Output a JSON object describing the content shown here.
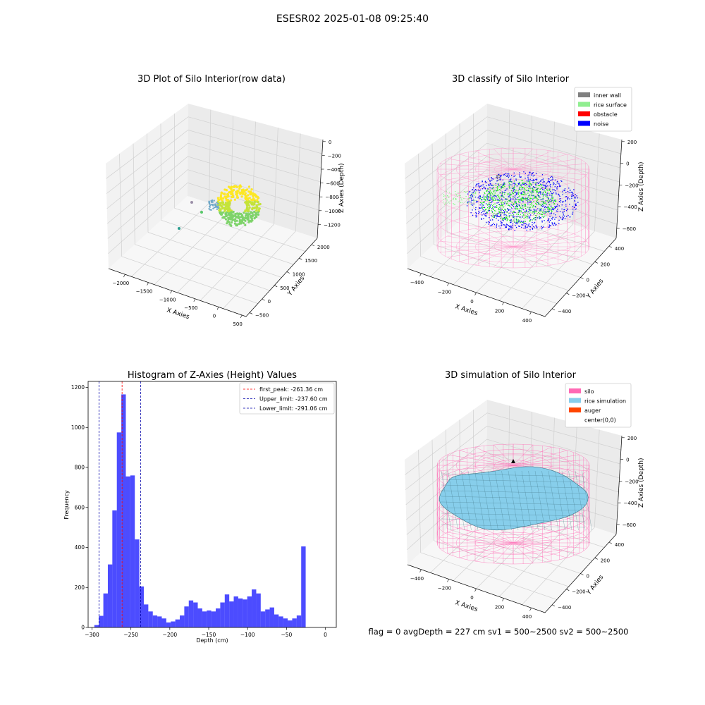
{
  "suptitle": "ESESR02 2025-01-08 09:25:40",
  "footer": "flag = 0     avgDepth = 227 cm  sv1 = 500~2500  sv2 = 500~2500",
  "chart_data": [
    {
      "type": "scatter3d",
      "title": "3D Plot of Silo Interior(row data)",
      "xlabel": "X Axies",
      "ylabel": "Y Axies",
      "zlabel": "Z Axies (Depth)",
      "x_ticks": [
        "−2000",
        "−1500",
        "−1000",
        "−500",
        "0",
        "500"
      ],
      "y_ticks": [
        "−500",
        "0",
        "500",
        "1000",
        "1500",
        "2000"
      ],
      "z_ticks": [
        "0",
        "−200",
        "−400",
        "−600",
        "−800",
        "−1000",
        "−1200"
      ],
      "xlim": [
        -2300,
        500
      ],
      "ylim": [
        -500,
        2300
      ],
      "zlim": [
        -1300,
        0
      ],
      "colormap": [
        "#2b9e8f",
        "#7ed36a",
        "#fde725"
      ],
      "grid": true
    },
    {
      "type": "scatter3d",
      "title": "3D classify of Silo Interior",
      "xlabel": "X Axies",
      "ylabel": "Y Axies",
      "zlabel": "Z Axies (Depth)",
      "x_ticks": [
        "−400",
        "−200",
        "0",
        "200",
        "400"
      ],
      "y_ticks": [
        "−400",
        "−200",
        "0",
        "200",
        "400"
      ],
      "z_ticks": [
        "200",
        "0",
        "−200",
        "−400",
        "−600"
      ],
      "legend_position": "top-right",
      "legend": [
        {
          "label": "inner wall",
          "color": "#808080"
        },
        {
          "label": "rice surface",
          "color": "#90ee90"
        },
        {
          "label": "obstacle",
          "color": "#ff0000"
        },
        {
          "label": "noise",
          "color": "#0000ff"
        }
      ],
      "grid": true
    },
    {
      "type": "bar",
      "title": "Histogram of Z-Axies (Height) Values",
      "xlabel": "Depth (cm)",
      "ylabel": "Frequency",
      "xlim": [
        -305,
        0
      ],
      "ylim": [
        0,
        1230
      ],
      "x_ticks": [
        -300,
        -250,
        -200,
        -150,
        -100,
        -50,
        0
      ],
      "y_ticks": [
        0,
        200,
        400,
        600,
        800,
        1000,
        1200
      ],
      "bin_start": -297,
      "bin_width": 5.78,
      "values": [
        12,
        58,
        170,
        315,
        585,
        975,
        1165,
        755,
        760,
        440,
        205,
        115,
        80,
        60,
        55,
        45,
        25,
        30,
        40,
        60,
        105,
        135,
        125,
        95,
        80,
        85,
        80,
        95,
        125,
        165,
        130,
        155,
        145,
        140,
        155,
        190,
        170,
        80,
        90,
        100,
        65,
        55,
        45,
        35,
        45,
        60,
        405
      ],
      "color": "#0000ff",
      "vlines": [
        {
          "label": "first_peak: -261.36 cm",
          "x": -261.36,
          "color": "#ff0000"
        },
        {
          "label": "Upper_limit: -237.60 cm",
          "x": -237.6,
          "color": "#0000aa"
        },
        {
          "label": "Lower_limit: -291.06 cm",
          "x": -291.06,
          "color": "#0000aa"
        }
      ],
      "legend_position": "top-right",
      "grid": false
    },
    {
      "type": "surface3d",
      "title": "3D simulation of Silo Interior",
      "xlabel": "X Axies",
      "ylabel": "Y Axies",
      "zlabel": "Z Axies (Depth)",
      "x_ticks": [
        "−400",
        "−200",
        "0",
        "200",
        "400"
      ],
      "y_ticks": [
        "−400",
        "−200",
        "0",
        "200",
        "400"
      ],
      "z_ticks": [
        "200",
        "0",
        "−200",
        "−400",
        "−600"
      ],
      "legend_position": "top-right",
      "legend": [
        {
          "label": "silo",
          "color": "#ff69b4"
        },
        {
          "label": "rice simulation",
          "color": "#87ceeb"
        },
        {
          "label": "auger",
          "color": "#ff4500"
        },
        {
          "label": "center(0,0)",
          "color": "#ffffff"
        }
      ],
      "grid": true
    }
  ]
}
